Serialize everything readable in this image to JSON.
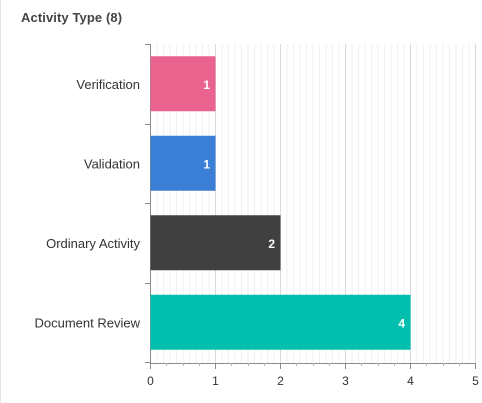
{
  "card": {
    "title": "Activity Type (8)"
  },
  "chart_data": {
    "type": "bar",
    "orientation": "horizontal",
    "categories": [
      "Verification",
      "Validation",
      "Ordinary Activity",
      "Document Review"
    ],
    "values": [
      1,
      1,
      2,
      4
    ],
    "colors": [
      "#e8648f",
      "#3a7fd5",
      "#404040",
      "#00bfac"
    ],
    "data_labels": [
      "1",
      "1",
      "2",
      "4"
    ],
    "xlim": [
      0,
      5
    ],
    "xticks": [
      0,
      1,
      2,
      3,
      4,
      5
    ],
    "grid": "vertical",
    "legend": "none"
  }
}
